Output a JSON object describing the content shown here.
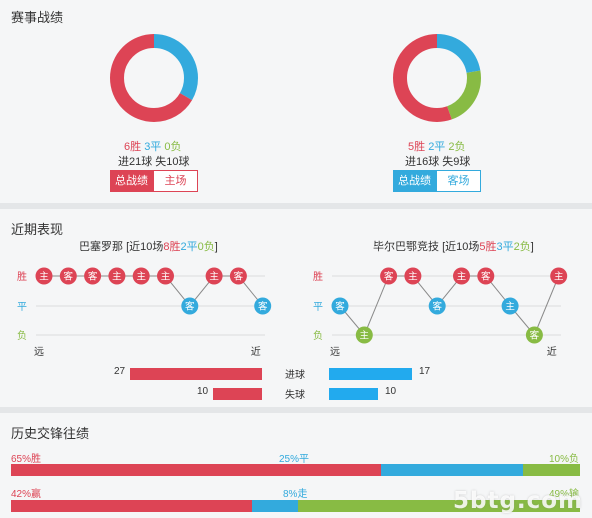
{
  "record": {
    "title": "赛事战绩",
    "home": {
      "win": "6胜",
      "draw": "3平",
      "loss": "0负",
      "goals": "进21球 失10球",
      "win_n": 6,
      "draw_n": 3,
      "loss_n": 0,
      "tab_all": "总战绩",
      "tab_side": "主场"
    },
    "away": {
      "win": "5胜",
      "draw": "2平",
      "loss": "2负",
      "goals": "进16球 失9球",
      "win_n": 5,
      "draw_n": 2,
      "loss_n": 2,
      "tab_all": "总战绩",
      "tab_side": "客场"
    }
  },
  "recent": {
    "title": "近期表现",
    "row_labels": {
      "win": "胜",
      "draw": "平",
      "loss": "负"
    },
    "axis": {
      "far": "远",
      "near": "近"
    },
    "home": {
      "name": "巴塞罗那",
      "pre": "[近10场",
      "w": "8胜",
      "d": "2平",
      "l": "0负",
      "post": "]",
      "matches": [
        {
          "res": "W",
          "venue": "主"
        },
        {
          "res": "W",
          "venue": "客"
        },
        {
          "res": "W",
          "venue": "客"
        },
        {
          "res": "W",
          "venue": "主"
        },
        {
          "res": "W",
          "venue": "主"
        },
        {
          "res": "W",
          "venue": "主"
        },
        {
          "res": "D",
          "venue": "客"
        },
        {
          "res": "W",
          "venue": "主"
        },
        {
          "res": "W",
          "venue": "客"
        },
        {
          "res": "D",
          "venue": "客"
        }
      ]
    },
    "away": {
      "name": "毕尔巴鄂竞技",
      "pre": "[近10场",
      "w": "5胜",
      "d": "3平",
      "l": "2负",
      "post": "]",
      "matches": [
        {
          "res": "D",
          "venue": "客"
        },
        {
          "res": "L",
          "venue": "主"
        },
        {
          "res": "W",
          "venue": "客"
        },
        {
          "res": "W",
          "venue": "主"
        },
        {
          "res": "D",
          "venue": "客"
        },
        {
          "res": "W",
          "venue": "主"
        },
        {
          "res": "W",
          "venue": "客"
        },
        {
          "res": "D",
          "venue": "主"
        },
        {
          "res": "L",
          "venue": "客"
        },
        {
          "res": "W",
          "venue": "主"
        }
      ]
    },
    "stats": {
      "scored_label": "进球",
      "conceded_label": "失球",
      "home_scored": 27,
      "home_conceded": 10,
      "away_scored": 17,
      "away_conceded": 10
    }
  },
  "history": {
    "title": "历史交锋往绩",
    "row1": {
      "win": "65%胜",
      "draw": "25%平",
      "loss": "10%负",
      "w": 65,
      "d": 25,
      "l": 10
    },
    "row2": {
      "win": "42%赢",
      "draw": "8%走",
      "loss": "49%输",
      "w": 42,
      "d": 8,
      "l": 49
    }
  },
  "watermark": "5btg.com",
  "colors": {
    "win": "#dd4455",
    "draw": "#33aadd",
    "loss": "#88bb44"
  }
}
